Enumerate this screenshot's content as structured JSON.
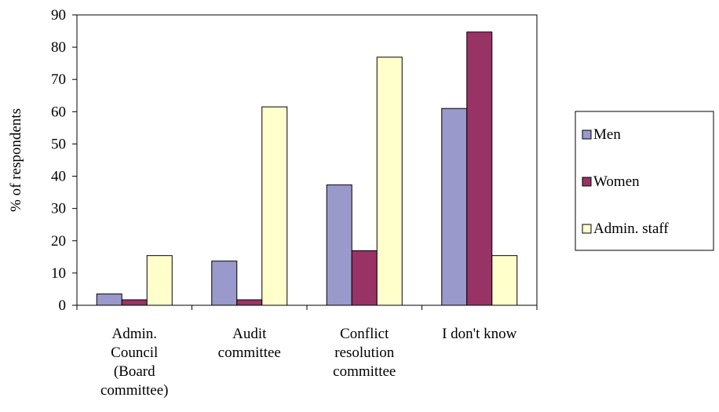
{
  "chart_data": {
    "type": "bar",
    "title": "",
    "xlabel": "",
    "ylabel": "% of respondents",
    "ylim": [
      0,
      90
    ],
    "yticks": [
      0,
      10,
      20,
      30,
      40,
      50,
      60,
      70,
      80,
      90
    ],
    "grid": false,
    "legend_position": "right",
    "categories": [
      "Admin. Council (Board committee)",
      "Audit committee",
      "Conflict resolution committee",
      "I don't know"
    ],
    "category_label_lines": [
      [
        "Admin.",
        "Council",
        "(Board",
        "committee)"
      ],
      [
        "Audit",
        "committee"
      ],
      [
        "Conflict",
        "resolution",
        "committee"
      ],
      [
        "I don't know"
      ]
    ],
    "series": [
      {
        "name": "Men",
        "color": "#9999CC",
        "values": [
          3.5,
          13.7,
          37.3,
          61.0
        ]
      },
      {
        "name": "Women",
        "color": "#993366",
        "values": [
          1.7,
          1.7,
          16.9,
          84.7
        ]
      },
      {
        "name": "Admin. staff",
        "color": "#FFFFCC",
        "values": [
          15.4,
          61.5,
          76.9,
          15.4
        ]
      }
    ]
  }
}
